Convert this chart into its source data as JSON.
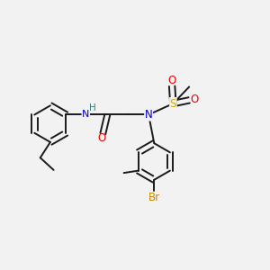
{
  "bg_color": "#f2f2f2",
  "bond_color": "#1a1a1a",
  "atom_colors": {
    "N": "#0000cc",
    "O": "#ee0000",
    "S": "#ccaa00",
    "Br": "#cc8800",
    "H": "#3a7a7a",
    "C": "#1a1a1a"
  },
  "figsize": [
    3.0,
    3.0
  ],
  "dpi": 100,
  "xlim": [
    0,
    12
  ],
  "ylim": [
    0,
    12
  ]
}
